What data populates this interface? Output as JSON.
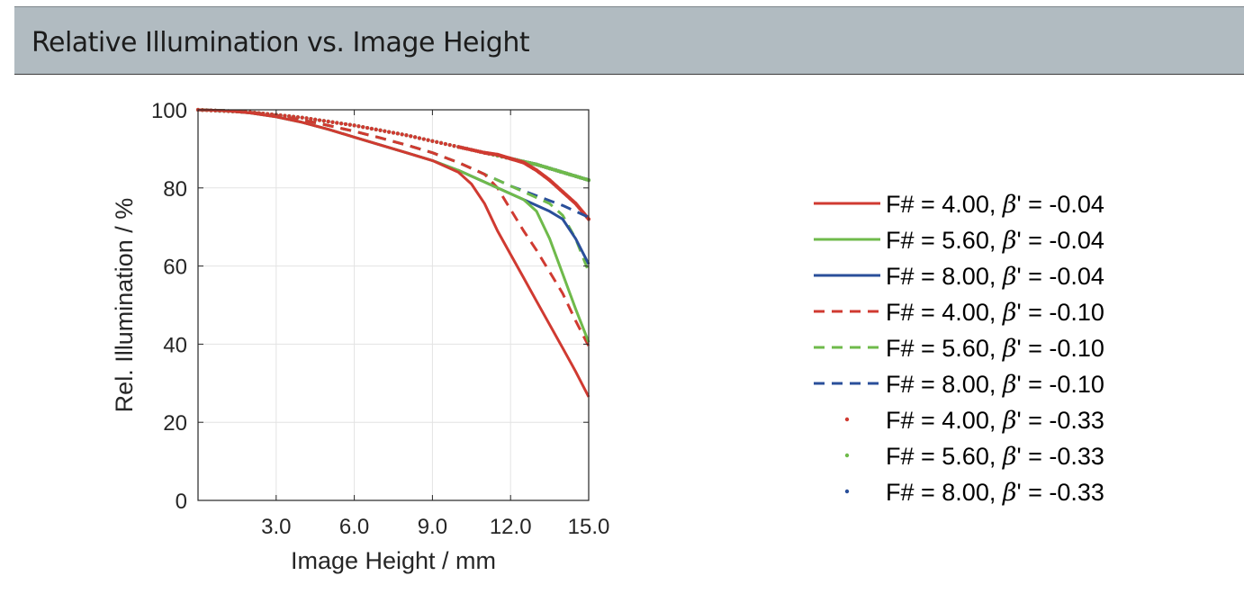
{
  "header": {
    "title": "Relative Illumination vs. Image Height"
  },
  "chart_data": {
    "type": "line",
    "title": "",
    "xlabel": "Image Height / mm",
    "ylabel": "Rel. Illumination / %",
    "xlim": [
      0,
      15
    ],
    "ylim": [
      0,
      100
    ],
    "xticks": [
      "3.0",
      "6.0",
      "9.0",
      "12.0",
      "15.0"
    ],
    "yticks": [
      "0",
      "20",
      "40",
      "60",
      "80",
      "100"
    ],
    "grid": true,
    "legend_position": "right",
    "series": [
      {
        "name": "F# = 4.00, β' = -0.04",
        "label_prefix": "F# = 4.00, ",
        "beta_symbol": "β",
        "label_suffix": "' = -0.04",
        "color": "#d03a31",
        "style": "solid",
        "x": [
          0,
          1,
          2,
          3,
          4,
          5,
          6,
          7,
          8,
          9,
          10,
          10.5,
          11,
          11.5,
          12,
          12.5,
          13,
          13.5,
          14,
          14.5,
          15
        ],
        "y": [
          100,
          99.8,
          99.2,
          98.2,
          96.8,
          95,
          93,
          91,
          89,
          87,
          84,
          81,
          76,
          69,
          63,
          57,
          51,
          45,
          39,
          33,
          26.5
        ]
      },
      {
        "name": "F# = 5.60, β' = -0.04",
        "label_prefix": "F# = 5.60, ",
        "beta_symbol": "β",
        "label_suffix": "' = -0.04",
        "color": "#6fba4b",
        "style": "solid",
        "x": [
          0,
          1,
          2,
          3,
          4,
          5,
          6,
          7,
          8,
          9,
          10,
          11,
          12,
          12.5,
          13,
          13.5,
          14,
          14.5,
          15
        ],
        "y": [
          100,
          99.8,
          99.2,
          98.2,
          96.8,
          95,
          93,
          91,
          89,
          87,
          84.5,
          81.5,
          78.5,
          77,
          74,
          67,
          58,
          49,
          40.5
        ]
      },
      {
        "name": "F# = 8.00, β' = -0.04",
        "label_prefix": "F# = 8.00, ",
        "beta_symbol": "β",
        "label_suffix": "' = -0.04",
        "color": "#2a4f9a",
        "style": "solid",
        "x": [
          0,
          1,
          2,
          3,
          4,
          5,
          6,
          7,
          8,
          9,
          10,
          11,
          12,
          13,
          13.5,
          14,
          14.5,
          15
        ],
        "y": [
          100,
          99.8,
          99.2,
          98.2,
          96.8,
          95,
          93,
          91,
          89,
          87,
          84.5,
          81.5,
          78.5,
          75.5,
          74,
          72,
          67,
          60.5
        ]
      },
      {
        "name": "F# = 4.00, β' = -0.10",
        "label_prefix": "F# = 4.00, ",
        "beta_symbol": "β",
        "label_suffix": "' = -0.10",
        "color": "#d03a31",
        "style": "dashed",
        "x": [
          0,
          1,
          2,
          3,
          4,
          5,
          6,
          7,
          8,
          9,
          10,
          11,
          11.5,
          12,
          12.5,
          13,
          13.5,
          14,
          14.5,
          15
        ],
        "y": [
          100,
          99.8,
          99.4,
          98.6,
          97.4,
          96,
          94.5,
          92.8,
          91,
          89,
          86.5,
          83.5,
          80,
          74.5,
          69,
          64,
          58.5,
          53,
          46,
          39.5
        ]
      },
      {
        "name": "F# = 5.60, β' = -0.10",
        "label_prefix": "F# = 5.60, ",
        "beta_symbol": "β",
        "label_suffix": "' = -0.10",
        "color": "#6fba4b",
        "style": "dashed",
        "x": [
          0,
          1,
          2,
          3,
          4,
          5,
          6,
          7,
          8,
          9,
          10,
          11,
          12,
          13,
          13.5,
          14,
          14.5,
          15
        ],
        "y": [
          100,
          99.8,
          99.4,
          98.6,
          97.4,
          96,
          94.5,
          92.8,
          91,
          89,
          86.5,
          83.5,
          80.5,
          77.5,
          76,
          73,
          67,
          58.5
        ]
      },
      {
        "name": "F# = 8.00, β' = -0.10",
        "label_prefix": "F# = 8.00, ",
        "beta_symbol": "β",
        "label_suffix": "' = -0.10",
        "color": "#2a4f9a",
        "style": "dashed",
        "x": [
          0,
          1,
          2,
          3,
          4,
          5,
          6,
          7,
          8,
          9,
          10,
          11,
          12,
          13,
          14,
          14.5,
          15
        ],
        "y": [
          100,
          99.8,
          99.4,
          98.6,
          97.4,
          96,
          94.5,
          92.8,
          91,
          89,
          86.5,
          83.5,
          80.5,
          78,
          75.5,
          74,
          72.5
        ]
      },
      {
        "name": "F# = 4.00, β' = -0.33",
        "label_prefix": "F# = 4.00, ",
        "beta_symbol": "β",
        "label_suffix": "' = -0.33",
        "color": "#d03a31",
        "style": "dots",
        "x": [
          0,
          2,
          4,
          6,
          8,
          10,
          11,
          11.5,
          12,
          12.5,
          13,
          13.5,
          14,
          14.5,
          15
        ],
        "y": [
          100,
          99.4,
          98,
          96,
          93.5,
          90.5,
          89,
          88.5,
          87.5,
          86.5,
          84.5,
          82,
          79,
          76,
          72
        ]
      },
      {
        "name": "F# = 5.60, β' = -0.33",
        "label_prefix": "F# = 5.60, ",
        "beta_symbol": "β",
        "label_suffix": "' = -0.33",
        "color": "#6fba4b",
        "style": "dots",
        "x": [
          0,
          2,
          4,
          6,
          8,
          10,
          12,
          13,
          14,
          15
        ],
        "y": [
          100,
          99.4,
          98,
          96,
          93.5,
          90.5,
          87.5,
          86,
          84,
          82
        ]
      },
      {
        "name": "F# = 8.00, β' = -0.33",
        "label_prefix": "F# = 8.00, ",
        "beta_symbol": "β",
        "label_suffix": "' = -0.33",
        "color": "#2a4f9a",
        "style": "dots",
        "x": [
          0,
          2,
          4,
          6,
          8,
          10,
          12,
          13,
          14,
          15
        ],
        "y": [
          100,
          99.4,
          98,
          96,
          93.5,
          90.5,
          87.5,
          86,
          84,
          82
        ]
      }
    ]
  }
}
